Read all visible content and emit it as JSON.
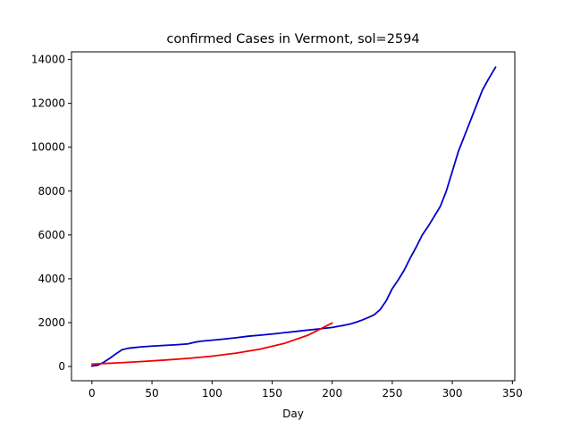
{
  "chart_data": {
    "type": "line",
    "title": "confirmed Cases in Vermont, sol=2594",
    "xlabel": "Day",
    "ylabel": "",
    "xlim": [
      -17,
      352
    ],
    "ylim": [
      -650,
      14350
    ],
    "xticks": [
      0,
      50,
      100,
      150,
      200,
      250,
      300,
      350
    ],
    "yticks": [
      0,
      2000,
      4000,
      6000,
      8000,
      10000,
      12000,
      14000
    ],
    "grid": false,
    "legend": "none",
    "series": [
      {
        "color": "#0000cc",
        "x": [
          0,
          5,
          10,
          15,
          20,
          25,
          30,
          35,
          40,
          50,
          60,
          70,
          80,
          85,
          90,
          100,
          110,
          120,
          130,
          140,
          150,
          160,
          170,
          180,
          190,
          200,
          205,
          210,
          215,
          220,
          225,
          230,
          235,
          240,
          245,
          250,
          255,
          260,
          265,
          270,
          275,
          280,
          285,
          290,
          295,
          300,
          305,
          310,
          315,
          320,
          325,
          330,
          336
        ],
        "y": [
          20,
          60,
          200,
          380,
          580,
          760,
          830,
          860,
          890,
          930,
          960,
          990,
          1030,
          1100,
          1150,
          1200,
          1250,
          1310,
          1380,
          1430,
          1480,
          1540,
          1600,
          1660,
          1720,
          1780,
          1830,
          1880,
          1940,
          2020,
          2120,
          2230,
          2360,
          2600,
          3000,
          3550,
          3950,
          4400,
          4950,
          5450,
          6000,
          6400,
          6850,
          7300,
          8000,
          8900,
          9800,
          10500,
          11200,
          11900,
          12600,
          13100,
          13650
        ]
      },
      {
        "color": "#ee0000",
        "x": [
          0,
          20,
          40,
          60,
          80,
          100,
          120,
          140,
          160,
          180,
          200
        ],
        "y": [
          110,
          160,
          220,
          290,
          370,
          470,
          610,
          790,
          1050,
          1430,
          1980
        ]
      }
    ]
  }
}
